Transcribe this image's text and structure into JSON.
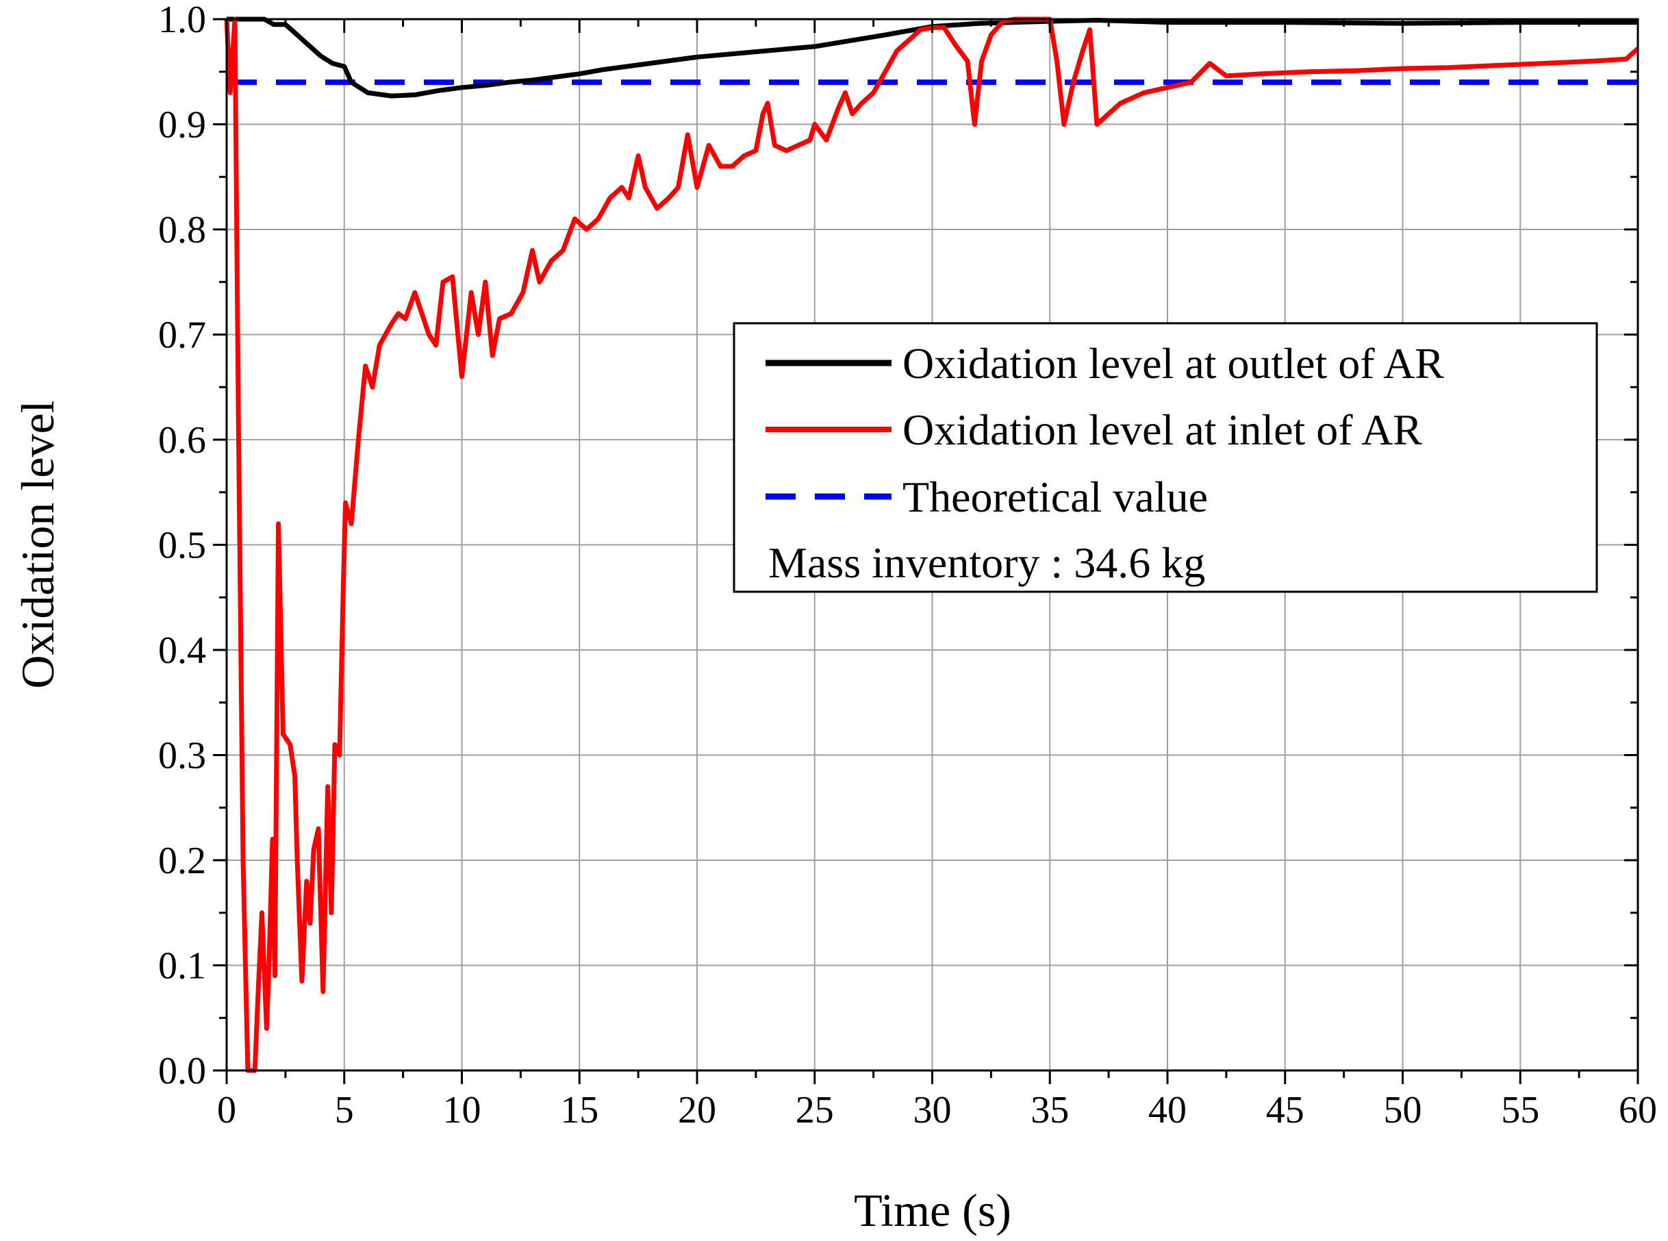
{
  "chart_data": {
    "type": "line",
    "title": "",
    "xlabel": "Time (s)",
    "ylabel": "Oxidation level",
    "xlim": [
      0,
      60
    ],
    "ylim": [
      0.0,
      1.0
    ],
    "grid": true,
    "x_ticks": [
      0,
      5,
      10,
      15,
      20,
      25,
      30,
      35,
      40,
      45,
      50,
      55,
      60
    ],
    "x_tick_labels": [
      "0",
      "5",
      "10",
      "15",
      "20",
      "25",
      "30",
      "35",
      "40",
      "45",
      "50",
      "55",
      "60"
    ],
    "y_ticks": [
      0.0,
      0.1,
      0.2,
      0.3,
      0.4,
      0.5,
      0.6,
      0.7,
      0.8,
      0.9,
      1.0
    ],
    "y_tick_labels": [
      "0.0",
      "0.1",
      "0.2",
      "0.3",
      "0.4",
      "0.5",
      "0.6",
      "0.7",
      "0.8",
      "0.9",
      "1.0"
    ],
    "legend_position": "center-right",
    "legend_note": "Mass inventory : 34.6 kg",
    "series": [
      {
        "name": "Oxidation level at outlet of AR",
        "color": "#000000",
        "style": "solid",
        "points": [
          [
            0,
            1.0
          ],
          [
            1,
            1.0
          ],
          [
            1.6,
            1.0
          ],
          [
            2,
            0.995
          ],
          [
            2.5,
            0.995
          ],
          [
            3,
            0.985
          ],
          [
            3.5,
            0.975
          ],
          [
            4,
            0.965
          ],
          [
            4.5,
            0.958
          ],
          [
            5,
            0.955
          ],
          [
            5.3,
            0.94
          ],
          [
            6,
            0.93
          ],
          [
            7,
            0.927
          ],
          [
            8,
            0.928
          ],
          [
            9,
            0.932
          ],
          [
            10,
            0.935
          ],
          [
            11,
            0.937
          ],
          [
            12,
            0.94
          ],
          [
            13,
            0.942
          ],
          [
            14,
            0.945
          ],
          [
            15,
            0.948
          ],
          [
            16,
            0.952
          ],
          [
            17,
            0.955
          ],
          [
            18,
            0.958
          ],
          [
            19,
            0.961
          ],
          [
            20,
            0.964
          ],
          [
            22,
            0.968
          ],
          [
            25,
            0.974
          ],
          [
            28,
            0.985
          ],
          [
            30,
            0.993
          ],
          [
            32,
            0.996
          ],
          [
            35,
            0.998
          ],
          [
            37,
            0.999
          ],
          [
            40,
            0.997
          ],
          [
            45,
            0.997
          ],
          [
            50,
            0.996
          ],
          [
            55,
            0.997
          ],
          [
            60,
            0.997
          ]
        ]
      },
      {
        "name": "Oxidation level at inlet of AR",
        "color": "#ff0000",
        "style": "solid",
        "points": [
          [
            0,
            1.0
          ],
          [
            0.15,
            0.93
          ],
          [
            0.35,
            1.0
          ],
          [
            0.5,
            0.62
          ],
          [
            0.7,
            0.2
          ],
          [
            0.9,
            0.0
          ],
          [
            1.2,
            0.0
          ],
          [
            1.35,
            0.08
          ],
          [
            1.5,
            0.15
          ],
          [
            1.7,
            0.04
          ],
          [
            1.8,
            0.1
          ],
          [
            1.95,
            0.22
          ],
          [
            2.05,
            0.09
          ],
          [
            2.2,
            0.52
          ],
          [
            2.4,
            0.32
          ],
          [
            2.7,
            0.31
          ],
          [
            2.9,
            0.28
          ],
          [
            3.0,
            0.2
          ],
          [
            3.2,
            0.085
          ],
          [
            3.4,
            0.18
          ],
          [
            3.55,
            0.14
          ],
          [
            3.7,
            0.21
          ],
          [
            3.9,
            0.23
          ],
          [
            4.1,
            0.075
          ],
          [
            4.3,
            0.27
          ],
          [
            4.45,
            0.15
          ],
          [
            4.6,
            0.31
          ],
          [
            4.8,
            0.3
          ],
          [
            4.95,
            0.45
          ],
          [
            5.05,
            0.54
          ],
          [
            5.3,
            0.52
          ],
          [
            5.6,
            0.6
          ],
          [
            5.9,
            0.67
          ],
          [
            6.2,
            0.65
          ],
          [
            6.5,
            0.69
          ],
          [
            7,
            0.71
          ],
          [
            7.3,
            0.72
          ],
          [
            7.6,
            0.715
          ],
          [
            8,
            0.74
          ],
          [
            8.3,
            0.72
          ],
          [
            8.6,
            0.7
          ],
          [
            8.9,
            0.69
          ],
          [
            9.2,
            0.75
          ],
          [
            9.6,
            0.755
          ],
          [
            10,
            0.66
          ],
          [
            10.4,
            0.74
          ],
          [
            10.7,
            0.7
          ],
          [
            11,
            0.75
          ],
          [
            11.3,
            0.68
          ],
          [
            11.6,
            0.715
          ],
          [
            12.1,
            0.72
          ],
          [
            12.6,
            0.74
          ],
          [
            13,
            0.78
          ],
          [
            13.3,
            0.75
          ],
          [
            13.8,
            0.77
          ],
          [
            14.3,
            0.78
          ],
          [
            14.8,
            0.81
          ],
          [
            15.3,
            0.8
          ],
          [
            15.8,
            0.81
          ],
          [
            16.3,
            0.83
          ],
          [
            16.8,
            0.84
          ],
          [
            17.1,
            0.83
          ],
          [
            17.5,
            0.87
          ],
          [
            17.8,
            0.84
          ],
          [
            18.3,
            0.82
          ],
          [
            18.8,
            0.83
          ],
          [
            19.2,
            0.84
          ],
          [
            19.6,
            0.89
          ],
          [
            20,
            0.84
          ],
          [
            20.5,
            0.88
          ],
          [
            21,
            0.86
          ],
          [
            21.5,
            0.86
          ],
          [
            22,
            0.87
          ],
          [
            22.5,
            0.875
          ],
          [
            22.8,
            0.91
          ],
          [
            23,
            0.92
          ],
          [
            23.3,
            0.88
          ],
          [
            23.8,
            0.875
          ],
          [
            24.3,
            0.88
          ],
          [
            24.8,
            0.885
          ],
          [
            25,
            0.9
          ],
          [
            25.5,
            0.885
          ],
          [
            26,
            0.915
          ],
          [
            26.3,
            0.93
          ],
          [
            26.6,
            0.91
          ],
          [
            27,
            0.92
          ],
          [
            27.5,
            0.93
          ],
          [
            28,
            0.95
          ],
          [
            28.5,
            0.97
          ],
          [
            29,
            0.98
          ],
          [
            29.5,
            0.99
          ],
          [
            30,
            0.992
          ],
          [
            30.5,
            0.992
          ],
          [
            31,
            0.975
          ],
          [
            31.5,
            0.96
          ],
          [
            31.8,
            0.9
          ],
          [
            32.1,
            0.96
          ],
          [
            32.5,
            0.985
          ],
          [
            33,
            0.998
          ],
          [
            33.5,
            1.0
          ],
          [
            34,
            1.0
          ],
          [
            35,
            1.0
          ],
          [
            35.3,
            0.96
          ],
          [
            35.6,
            0.9
          ],
          [
            36,
            0.94
          ],
          [
            36.4,
            0.97
          ],
          [
            36.7,
            0.99
          ],
          [
            37,
            0.9
          ],
          [
            37.5,
            0.91
          ],
          [
            38,
            0.92
          ],
          [
            39,
            0.93
          ],
          [
            40,
            0.935
          ],
          [
            41,
            0.94
          ],
          [
            41.8,
            0.958
          ],
          [
            42.5,
            0.946
          ],
          [
            44,
            0.948
          ],
          [
            46,
            0.95
          ],
          [
            48,
            0.951
          ],
          [
            50,
            0.953
          ],
          [
            52,
            0.954
          ],
          [
            54,
            0.956
          ],
          [
            56,
            0.958
          ],
          [
            58,
            0.96
          ],
          [
            59.5,
            0.962
          ],
          [
            60,
            0.972
          ]
        ]
      },
      {
        "name": "Theoretical value",
        "color": "#0000ff",
        "style": "dashed",
        "points": [
          [
            0,
            0.94
          ],
          [
            60,
            0.94
          ]
        ]
      }
    ]
  }
}
